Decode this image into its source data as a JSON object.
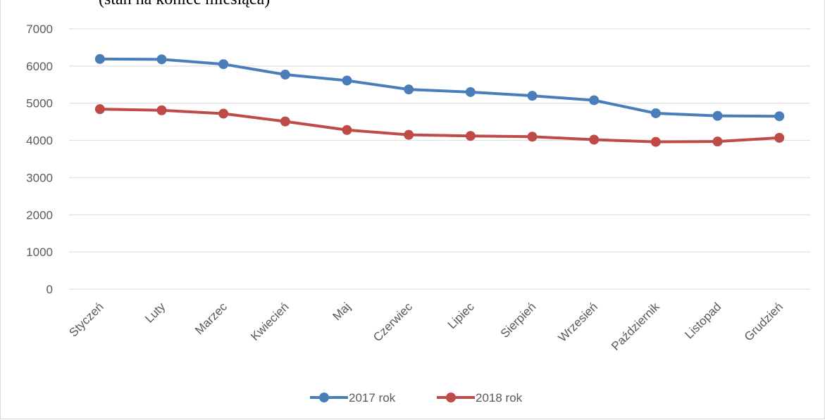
{
  "chart_data": {
    "type": "line",
    "subtitle": "(stan na koniec miesiąca)",
    "categories": [
      "Styczeń",
      "Luty",
      "Marzec",
      "Kwiecień",
      "Maj",
      "Czerwiec",
      "Lipiec",
      "Sierpień",
      "Wrzesień",
      "Październik",
      "Listopad",
      "Grudzień"
    ],
    "y_ticks": [
      "0",
      "1000",
      "2000",
      "3000",
      "4000",
      "5000",
      "6000",
      "7000"
    ],
    "ylim": [
      0,
      7000
    ],
    "grid": true,
    "legend_position": "bottom",
    "series": [
      {
        "name": "2017 rok",
        "color": "#4a7ebb",
        "values": [
          6190,
          6180,
          6050,
          5770,
          5610,
          5370,
          5300,
          5200,
          5080,
          4730,
          4660,
          4650
        ]
      },
      {
        "name": "2018 rok",
        "color": "#be4b48",
        "values": [
          4840,
          4810,
          4720,
          4510,
          4280,
          4150,
          4120,
          4100,
          4020,
          3960,
          3970,
          4070
        ]
      }
    ]
  }
}
